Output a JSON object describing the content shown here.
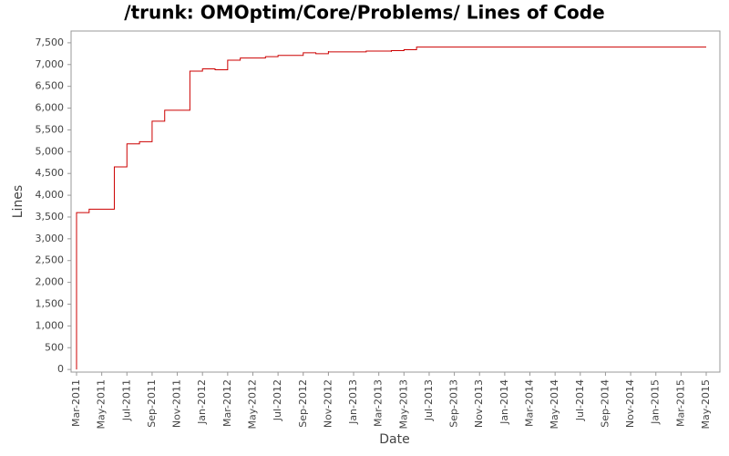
{
  "chart_data": {
    "type": "step",
    "title": "/trunk: OMOptim/Core/Problems/ Lines of Code",
    "x_label": "Date",
    "y_label": "Lines",
    "x": [
      "2011-03",
      "2011-03",
      "2011-04",
      "2011-06",
      "2011-07",
      "2011-07",
      "2011-08",
      "2011-09",
      "2011-10",
      "2011-12",
      "2012-01",
      "2012-02",
      "2012-03",
      "2012-04",
      "2012-06",
      "2012-07",
      "2012-09",
      "2012-10",
      "2012-11",
      "2012-11",
      "2013-02",
      "2013-04",
      "2013-04",
      "2013-05",
      "2013-06",
      "2015-05"
    ],
    "values": [
      0,
      3600,
      3680,
      4650,
      5100,
      5180,
      5230,
      5700,
      5950,
      6850,
      6900,
      6880,
      7100,
      7150,
      7180,
      7210,
      7270,
      7250,
      7310,
      7290,
      7310,
      7290,
      7320,
      7340,
      7400,
      7400
    ],
    "color": "#cc0000",
    "xlim": [
      "2011-03",
      "2015-05"
    ],
    "xticks": [
      {
        "value": "2011-03",
        "label": "Mar-2011"
      },
      {
        "value": "2011-05",
        "label": "May-2011"
      },
      {
        "value": "2011-07",
        "label": "Jul-2011"
      },
      {
        "value": "2011-09",
        "label": "Sep-2011"
      },
      {
        "value": "2011-11",
        "label": "Nov-2011"
      },
      {
        "value": "2012-01",
        "label": "Jan-2012"
      },
      {
        "value": "2012-03",
        "label": "Mar-2012"
      },
      {
        "value": "2012-05",
        "label": "May-2012"
      },
      {
        "value": "2012-07",
        "label": "Jul-2012"
      },
      {
        "value": "2012-09",
        "label": "Sep-2012"
      },
      {
        "value": "2012-11",
        "label": "Nov-2012"
      },
      {
        "value": "2013-01",
        "label": "Jan-2013"
      },
      {
        "value": "2013-03",
        "label": "Mar-2013"
      },
      {
        "value": "2013-05",
        "label": "May-2013"
      },
      {
        "value": "2013-07",
        "label": "Jul-2013"
      },
      {
        "value": "2013-09",
        "label": "Sep-2013"
      },
      {
        "value": "2013-11",
        "label": "Nov-2013"
      },
      {
        "value": "2014-01",
        "label": "Jan-2014"
      },
      {
        "value": "2014-03",
        "label": "Mar-2014"
      },
      {
        "value": "2014-05",
        "label": "May-2014"
      },
      {
        "value": "2014-07",
        "label": "Jul-2014"
      },
      {
        "value": "2014-09",
        "label": "Sep-2014"
      },
      {
        "value": "2014-11",
        "label": "Nov-2014"
      },
      {
        "value": "2015-01",
        "label": "Jan-2015"
      },
      {
        "value": "2015-03",
        "label": "Mar-2015"
      },
      {
        "value": "2015-05",
        "label": "May-2015"
      }
    ],
    "ylim": [
      -60,
      7770
    ],
    "yticks": [
      0,
      500,
      {
        "value": 1000,
        "label": "1,000"
      },
      {
        "value": 1500,
        "label": "1,500"
      },
      {
        "value": 2000,
        "label": "2,000"
      },
      {
        "value": 2500,
        "label": "2,500"
      },
      {
        "value": 3000,
        "label": "3,000"
      },
      {
        "value": 3500,
        "label": "3,500"
      },
      {
        "value": 4000,
        "label": "4,000"
      },
      {
        "value": 4500,
        "label": "4,500"
      },
      {
        "value": 5000,
        "label": "5,000"
      },
      {
        "value": 5500,
        "label": "5,500"
      },
      {
        "value": 6000,
        "label": "6,000"
      },
      {
        "value": 6500,
        "label": "6,500"
      },
      {
        "value": 7000,
        "label": "7,000"
      },
      {
        "value": 7500,
        "label": "7,500"
      }
    ],
    "grid": false
  }
}
